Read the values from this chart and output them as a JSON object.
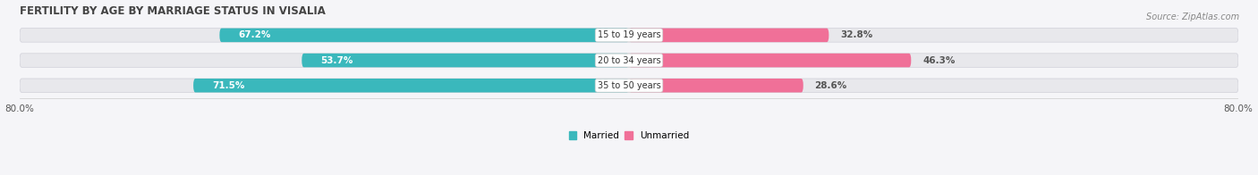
{
  "title": "FERTILITY BY AGE BY MARRIAGE STATUS IN VISALIA",
  "source": "Source: ZipAtlas.com",
  "categories": [
    "15 to 19 years",
    "20 to 34 years",
    "35 to 50 years"
  ],
  "married_values": [
    67.2,
    53.7,
    71.5
  ],
  "unmarried_values": [
    32.8,
    46.3,
    28.6
  ],
  "married_color": "#3ab8bc",
  "unmarried_color": "#f07098",
  "unmarried_color_mid": "#e0507a",
  "bar_bg_color": "#e8e8ec",
  "x_min": -80.0,
  "x_max": 80.0,
  "x_left_label": "80.0%",
  "x_right_label": "80.0%",
  "legend_married": "Married",
  "legend_unmarried": "Unmarried",
  "background_color": "#f5f5f8",
  "title_fontsize": 8.5,
  "source_fontsize": 7,
  "label_fontsize": 7.5,
  "category_fontsize": 7
}
